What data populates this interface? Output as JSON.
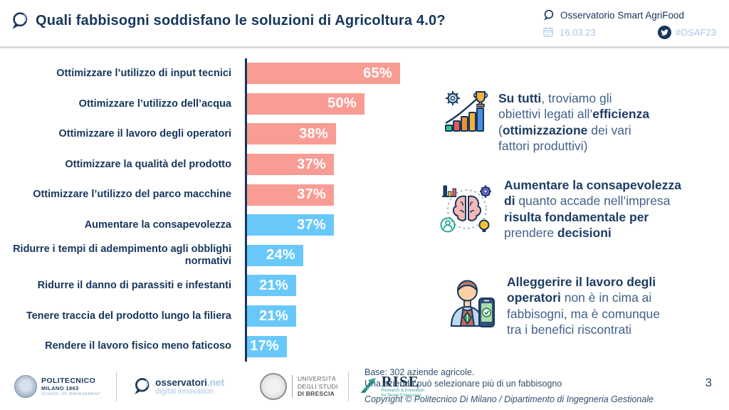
{
  "header": {
    "title": "Quali fabbisogni soddisfano le soluzioni di Agricoltura 4.0?",
    "brand": "Osservatorio Smart AgriFood",
    "date": "16.03.23",
    "hashtag": "#OSAF23"
  },
  "chart_data": {
    "type": "bar",
    "orientation": "horizontal",
    "title": "Quali fabbisogni soddisfano le soluzioni di Agricoltura 4.0?",
    "unit": "%",
    "xlim": [
      0,
      100
    ],
    "grid": false,
    "legend": "none",
    "colors": {
      "salmon": "#f99c94",
      "blue": "#69c8fa"
    },
    "categories": [
      "Ottimizzare l’utilizzo di input tecnici",
      "Ottimizzare l’utilizzo dell’acqua",
      "Ottimizzare il lavoro degli operatori",
      "Ottimizzare la qualità del prodotto",
      "Ottimizzare l’utilizzo del parco macchine",
      "Aumentare la consapevolezza",
      "Ridurre i tempi di adempimento agli obblighi normativi",
      "Ridurre il danno di parassiti e infestanti",
      "Tenere traccia del prodotto lungo la filiera",
      "Rendere il lavoro fisico meno faticoso"
    ],
    "values": [
      65,
      50,
      38,
      37,
      37,
      37,
      24,
      21,
      21,
      17
    ],
    "items": [
      {
        "label": "Ottimizzare l’utilizzo di input tecnici",
        "value": 65,
        "pct": "65%",
        "group": "salmon"
      },
      {
        "label": "Ottimizzare l’utilizzo dell’acqua",
        "value": 50,
        "pct": "50%",
        "group": "salmon"
      },
      {
        "label": "Ottimizzare il lavoro degli operatori",
        "value": 38,
        "pct": "38%",
        "group": "salmon"
      },
      {
        "label": "Ottimizzare la qualità del prodotto",
        "value": 37,
        "pct": "37%",
        "group": "salmon"
      },
      {
        "label": "Ottimizzare l’utilizzo del parco macchine",
        "value": 37,
        "pct": "37%",
        "group": "salmon"
      },
      {
        "label": "Aumentare la consapevolezza",
        "value": 37,
        "pct": "37%",
        "group": "blue"
      },
      {
        "label": "Ridurre i tempi di adempimento agli obblighi normativi",
        "value": 24,
        "pct": "24%",
        "group": "blue"
      },
      {
        "label": "Ridurre il danno di parassiti e infestanti",
        "value": 21,
        "pct": "21%",
        "group": "blue"
      },
      {
        "label": "Tenere traccia del prodotto lungo la filiera",
        "value": 21,
        "pct": "21%",
        "group": "blue"
      },
      {
        "label": "Rendere il lavoro fisico meno faticoso",
        "value": 17,
        "pct": "17%",
        "group": "blue"
      }
    ]
  },
  "insights": [
    {
      "icon": "efficiency-growth-icon",
      "lines": [
        [
          {
            "t": "Su tutti",
            "b": true
          },
          {
            "t": ", troviamo gli",
            "b": false
          }
        ],
        [
          {
            "t": "obiettivi legati all’",
            "b": false
          },
          {
            "t": "efficienza",
            "b": true
          }
        ],
        [
          {
            "t": "(",
            "b": false
          },
          {
            "t": "ottimizzazione",
            "b": true
          },
          {
            "t": " dei vari",
            "b": false
          }
        ],
        [
          {
            "t": "fattori produttivi)",
            "b": false
          }
        ]
      ]
    },
    {
      "icon": "brain-awareness-icon",
      "lines": [
        [
          {
            "t": "Aumentare la consapevolezza",
            "b": true
          }
        ],
        [
          {
            "t": "di",
            "b": true
          },
          {
            "t": " quanto accade nell’impresa",
            "b": false
          }
        ],
        [
          {
            "t": "risulta fondamentale per",
            "b": true
          }
        ],
        [
          {
            "t": "prendere ",
            "b": false
          },
          {
            "t": "decisioni",
            "b": true
          }
        ]
      ]
    },
    {
      "icon": "farmer-phone-icon",
      "lines": [
        [
          {
            "t": "Alleggerire il lavoro degli",
            "b": true
          }
        ],
        [
          {
            "t": "operatori",
            "b": true
          },
          {
            "t": " non è in cima ai",
            "b": false
          }
        ],
        [
          {
            "t": "fabbisogni, ma è comunque",
            "b": false
          }
        ],
        [
          {
            "t": "tra i benefici riscontrati",
            "b": false
          }
        ]
      ]
    }
  ],
  "footer": {
    "logos": {
      "politecnico": {
        "line1": "POLITECNICO",
        "line2": "MILANO 1863",
        "line3": "SCHOOL OF MANAGEMENT"
      },
      "osservatori": {
        "name": "osservatori",
        "net": ".net",
        "tagline": "digital innovation"
      },
      "unibs": {
        "line1": "UNIVERSITÀ",
        "line2": "DEGLI STUDI",
        "line3": "DI BRESCIA"
      },
      "rise": {
        "name": "RISE",
        "tag1": "Research & Innovation",
        "tag2": "for Smart Enterprises"
      }
    },
    "base_note_line1": "Base: 302 aziende agricole.",
    "base_note_line2": "Una azienda può selezionare più di un fabbisogno",
    "copyright": "Copyright © Politecnico Di Milano / Dipartimento di Ingegneria Gestionale",
    "page_number": "3"
  }
}
